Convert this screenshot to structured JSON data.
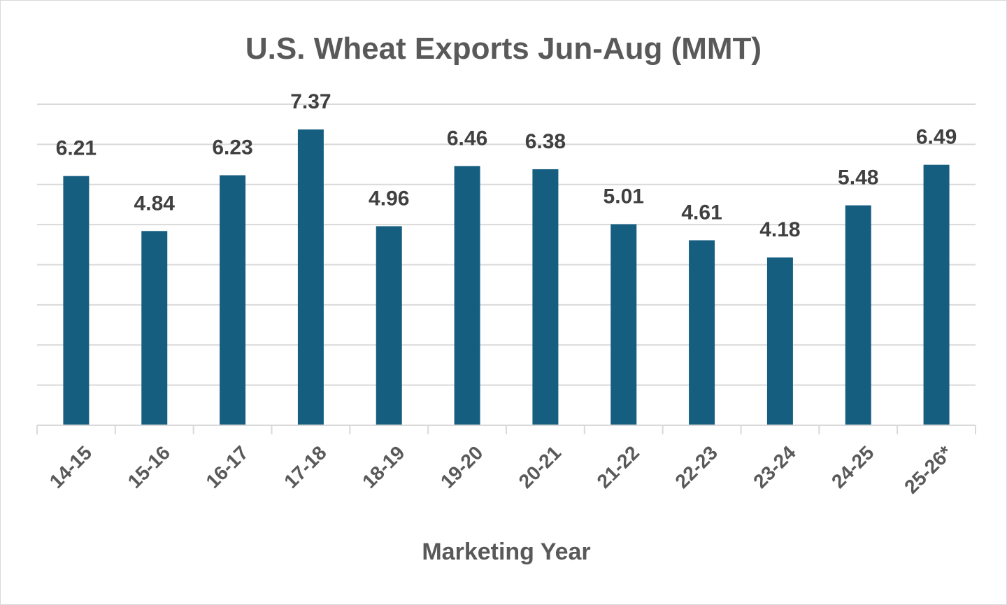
{
  "chart_data": {
    "type": "bar",
    "title": "U.S. Wheat Exports Jun-Aug (MMT)",
    "xlabel": "Marketing Year",
    "ylabel": "",
    "categories": [
      "14-15",
      "15-16",
      "16-17",
      "17-18",
      "18-19",
      "19-20",
      "20-21",
      "21-22",
      "22-23",
      "23-24",
      "24-25",
      "25-26*"
    ],
    "values": [
      6.21,
      4.84,
      6.23,
      7.37,
      4.96,
      6.46,
      6.38,
      5.01,
      4.61,
      4.18,
      5.48,
      6.49
    ],
    "data_labels": [
      "6.21",
      "4.84",
      "6.23",
      "7.37",
      "4.96",
      "6.46",
      "6.38",
      "5.01",
      "4.61",
      "4.18",
      "5.48",
      "6.49"
    ],
    "ylim": [
      0,
      8
    ],
    "grid_step": 1,
    "grid": true,
    "y_tick_labels_visible": false,
    "legend": "none",
    "colors": {
      "bar": "#165E80",
      "grid": "#d9d9d9",
      "text": "#595959"
    }
  }
}
